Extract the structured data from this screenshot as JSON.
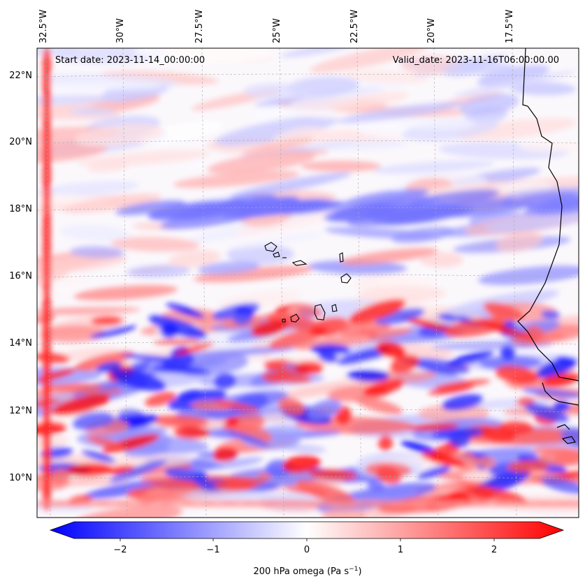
{
  "map": {
    "start_label": "Start date: 2023-11-14_00:00:00",
    "valid_label": "Valid_date: 2023-11-16T06:00:00.00",
    "lon_ticks": [
      "32.5°W",
      "30°W",
      "27.5°W",
      "25°W",
      "22.5°W",
      "20°W",
      "17.5°W"
    ],
    "lat_ticks": [
      "22°N",
      "20°N",
      "18°N",
      "16°N",
      "14°N",
      "12°N",
      "10°N"
    ],
    "colormap": [
      "#0000ff",
      "#ffffff",
      "#ff0000"
    ],
    "coastline_color": "#000000"
  },
  "colorbar": {
    "label_main": "200 hPa omega (Pa s",
    "label_exp": "−1",
    "label_close": ")",
    "ticks": [
      "−2",
      "−1",
      "0",
      "1",
      "2"
    ],
    "range": [
      -2.8,
      2.8
    ]
  }
}
